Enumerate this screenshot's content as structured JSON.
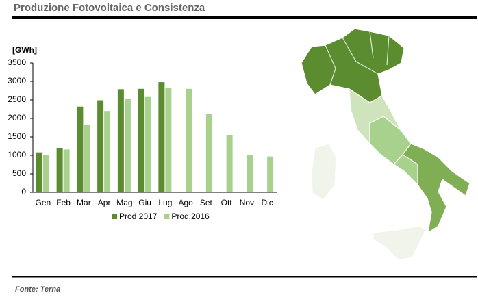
{
  "title": "Produzione Fotovoltaica e Consistenza",
  "source": "Fonte: Terna",
  "chart_data": {
    "type": "bar",
    "y_label": "[GWh]",
    "categories": [
      "Gen",
      "Feb",
      "Mar",
      "Apr",
      "Mag",
      "Giu",
      "Lug",
      "Ago",
      "Set",
      "Ott",
      "Nov",
      "Dic"
    ],
    "series": [
      {
        "name": "Prod 2017",
        "color": "#5b8c2f",
        "values": [
          1080,
          1190,
          2320,
          2490,
          2790,
          2800,
          2980,
          null,
          null,
          null,
          null,
          null
        ]
      },
      {
        "name": "Prod.2016",
        "color": "#a9d18e",
        "values": [
          1010,
          1160,
          1820,
          2200,
          2530,
          2580,
          2820,
          2800,
          2120,
          1540,
          1010,
          970
        ]
      }
    ],
    "ylim": [
      0,
      3500
    ],
    "yticks": [
      0,
      500,
      1000,
      1500,
      2000,
      2500,
      3000,
      3500
    ],
    "legend": "bottom"
  }
}
